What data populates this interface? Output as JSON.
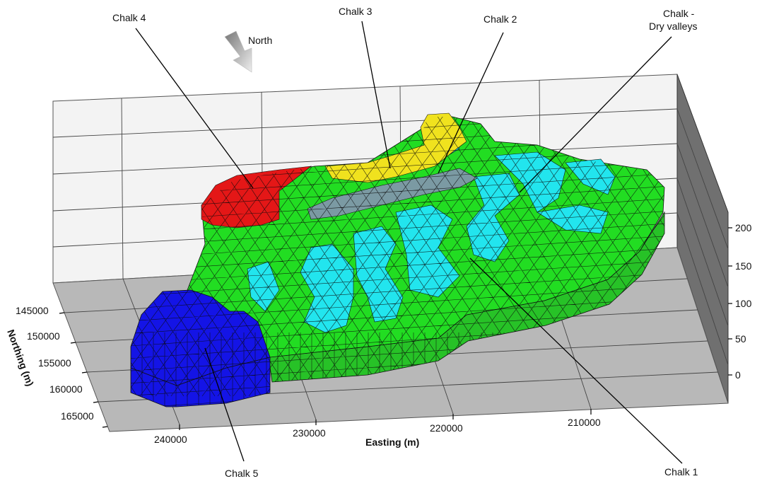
{
  "colors": {
    "chalk1": "#22dd22",
    "chalk1_side": "#27c227",
    "dry_valleys": "#22e5ee",
    "chalk2": "#7b9aa3",
    "chalk3": "#f0e21e",
    "chalk4": "#e41717",
    "chalk5": "#1414e6",
    "floor": "#b8b8b8",
    "back_wall": "#f3f3f3",
    "right_wall": "#707070"
  },
  "north_arrow": {
    "label": "North",
    "icon": "north-arrow-icon"
  },
  "zones": [
    {
      "key": "chalk1",
      "label": "Chalk 1"
    },
    {
      "key": "chalk2",
      "label": "Chalk 2"
    },
    {
      "key": "chalk3",
      "label": "Chalk 3"
    },
    {
      "key": "chalk4",
      "label": "Chalk 4"
    },
    {
      "key": "chalk5",
      "label": "Chalk 5"
    },
    {
      "key": "dry_valleys",
      "label_line1": "Chalk -",
      "label_line2": "Dry valleys"
    }
  ],
  "axes": {
    "easting": {
      "label": "Easting (m)",
      "ticks": [
        "240000",
        "230000",
        "220000",
        "210000"
      ]
    },
    "northing": {
      "label": "Northing (m)",
      "ticks": [
        "145000",
        "150000",
        "155000",
        "160000",
        "165000"
      ]
    },
    "elevation": {
      "ticks": [
        "200",
        "150",
        "100",
        "50",
        "0"
      ]
    }
  }
}
